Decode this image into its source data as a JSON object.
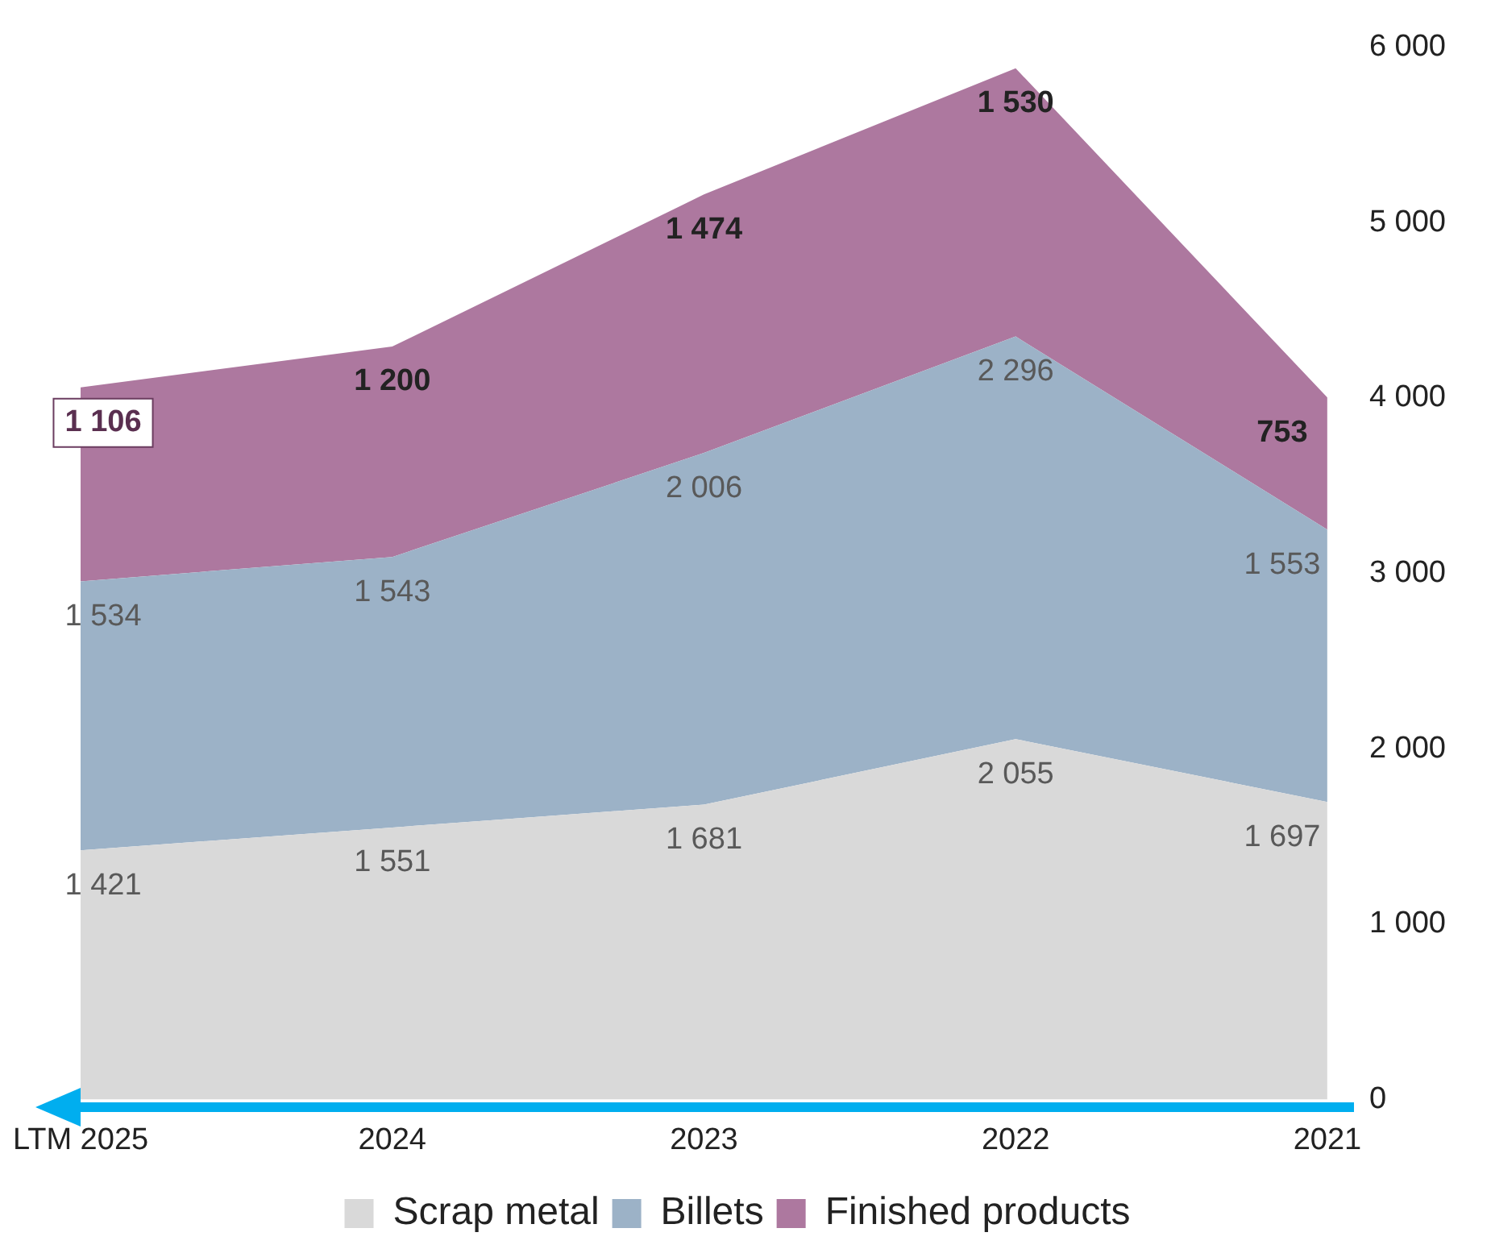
{
  "chart_data": {
    "type": "area",
    "stacked": true,
    "categories": [
      "LTM 2025",
      "2024",
      "2023",
      "2022",
      "2021"
    ],
    "series": [
      {
        "name": "Scrap metal",
        "color": "#d9d9d9",
        "values": [
          1421,
          1551,
          1681,
          2055,
          1697
        ],
        "value_labels": [
          "1 421",
          "1 551",
          "1 681",
          "2 055",
          "1 697"
        ]
      },
      {
        "name": "Billets",
        "color": "#9cb2c7",
        "values": [
          1534,
          1543,
          2006,
          2296,
          1553
        ],
        "value_labels": [
          "1 534",
          "1 543",
          "2 006",
          "2 296",
          "1 553"
        ]
      },
      {
        "name": "Finished products",
        "color": "#ad789f",
        "values": [
          1106,
          1200,
          1474,
          1530,
          753
        ],
        "value_labels": [
          "1 106",
          "1 200",
          "1 474",
          "1 530",
          "753"
        ]
      }
    ],
    "ylim": [
      0,
      6000
    ],
    "yticks": [
      {
        "value": 0,
        "label": "0"
      },
      {
        "value": 1000,
        "label": "1 000"
      },
      {
        "value": 2000,
        "label": "2 000"
      },
      {
        "value": 3000,
        "label": "3 000"
      },
      {
        "value": 4000,
        "label": "4 000"
      },
      {
        "value": 5000,
        "label": "5 000"
      },
      {
        "value": 6000,
        "label": "6 000"
      }
    ],
    "grid": false,
    "legend": "bottom"
  }
}
